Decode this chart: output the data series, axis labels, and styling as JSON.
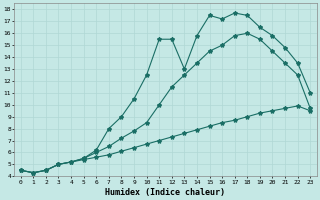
{
  "xlabel": "Humidex (Indice chaleur)",
  "background_color": "#c5e8e5",
  "grid_color": "#b0d8d5",
  "line_color": "#1a6e65",
  "xlim": [
    -0.5,
    23.5
  ],
  "ylim": [
    4,
    18.5
  ],
  "xticks": [
    0,
    1,
    2,
    3,
    4,
    5,
    6,
    7,
    8,
    9,
    10,
    11,
    12,
    13,
    14,
    15,
    16,
    17,
    18,
    19,
    20,
    21,
    22,
    23
  ],
  "yticks": [
    4,
    5,
    6,
    7,
    8,
    9,
    10,
    11,
    12,
    13,
    14,
    15,
    16,
    17,
    18
  ],
  "line1_x": [
    0,
    1,
    2,
    3,
    4,
    5,
    6,
    7,
    8,
    9,
    10,
    11,
    12,
    13,
    14,
    15,
    16,
    17,
    18,
    19,
    20,
    21,
    22,
    23
  ],
  "line1_y": [
    4.5,
    4.3,
    4.5,
    5.0,
    5.2,
    5.4,
    5.6,
    5.8,
    6.1,
    6.4,
    6.7,
    7.0,
    7.3,
    7.6,
    7.9,
    8.2,
    8.5,
    8.7,
    9.0,
    9.3,
    9.5,
    9.7,
    9.9,
    9.5
  ],
  "line2_x": [
    0,
    1,
    2,
    3,
    4,
    5,
    6,
    7,
    8,
    9,
    10,
    11,
    12,
    13,
    14,
    15,
    16,
    17,
    18,
    19,
    20,
    21,
    22,
    23
  ],
  "line2_y": [
    4.5,
    4.3,
    4.5,
    5.0,
    5.2,
    5.5,
    6.0,
    6.5,
    7.2,
    7.8,
    8.5,
    10.0,
    11.5,
    12.5,
    13.5,
    14.5,
    15.0,
    15.8,
    16.0,
    15.5,
    14.5,
    13.5,
    12.5,
    9.7
  ],
  "line3_x": [
    0,
    1,
    2,
    3,
    4,
    5,
    6,
    7,
    8,
    9,
    10,
    11,
    12,
    13,
    14,
    15,
    16,
    17,
    18,
    19,
    20,
    21,
    22,
    23
  ],
  "line3_y": [
    4.5,
    4.3,
    4.5,
    5.0,
    5.2,
    5.5,
    6.2,
    8.0,
    9.0,
    10.5,
    12.5,
    15.5,
    15.5,
    13.0,
    15.8,
    17.5,
    17.2,
    17.7,
    17.5,
    16.5,
    15.8,
    14.8,
    13.5,
    11.0
  ],
  "markersize": 3,
  "linewidth": 0.8
}
